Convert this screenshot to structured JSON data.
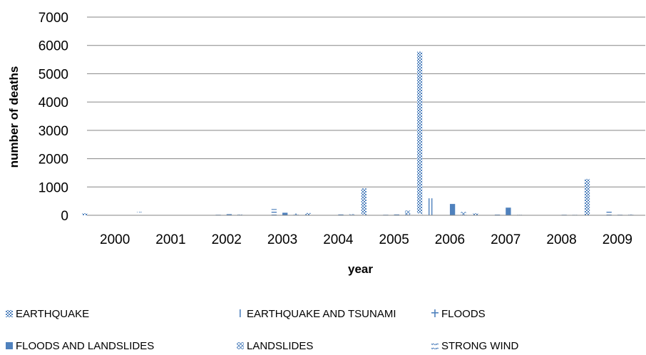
{
  "chart_data": {
    "type": "bar",
    "title": "",
    "xlabel": "year",
    "ylabel": "number of deaths",
    "ylim": [
      0,
      7000
    ],
    "yticks": [
      0,
      1000,
      2000,
      3000,
      4000,
      5000,
      6000,
      7000
    ],
    "grid": true,
    "legend_position": "bottom",
    "categories": [
      "2000",
      "2001",
      "2002",
      "2003",
      "2004",
      "2005",
      "2006",
      "2007",
      "2008",
      "2009"
    ],
    "series": [
      {
        "name": "EARTHQUAKE",
        "pattern": "checker",
        "color": "#4f81bd",
        "values": [
          70,
          0,
          0,
          0,
          80,
          950,
          5780,
          70,
          0,
          1280
        ]
      },
      {
        "name": "EARTHQUAKE AND TSUNAMI",
        "pattern": "vline",
        "color": "#4f81bd",
        "values": [
          0,
          0,
          0,
          0,
          0,
          0,
          600,
          0,
          0,
          0
        ]
      },
      {
        "name": "FLOODS",
        "pattern": "hline",
        "color": "#4f81bd",
        "values": [
          0,
          0,
          20,
          220,
          0,
          20,
          0,
          40,
          0,
          130
        ]
      },
      {
        "name": "FLOODS AND LANDSLIDES",
        "pattern": "solid",
        "color": "#4f81bd",
        "values": [
          0,
          0,
          40,
          90,
          30,
          30,
          400,
          270,
          20,
          20
        ]
      },
      {
        "name": "LANDSLIDES",
        "pattern": "diag",
        "color": "#4f81bd",
        "values": [
          0,
          0,
          30,
          60,
          40,
          170,
          120,
          20,
          20,
          30
        ]
      },
      {
        "name": "STRONG WIND",
        "pattern": "wave",
        "color": "#4f81bd",
        "values": [
          120,
          0,
          0,
          0,
          30,
          70,
          0,
          0,
          0,
          0
        ]
      }
    ]
  }
}
